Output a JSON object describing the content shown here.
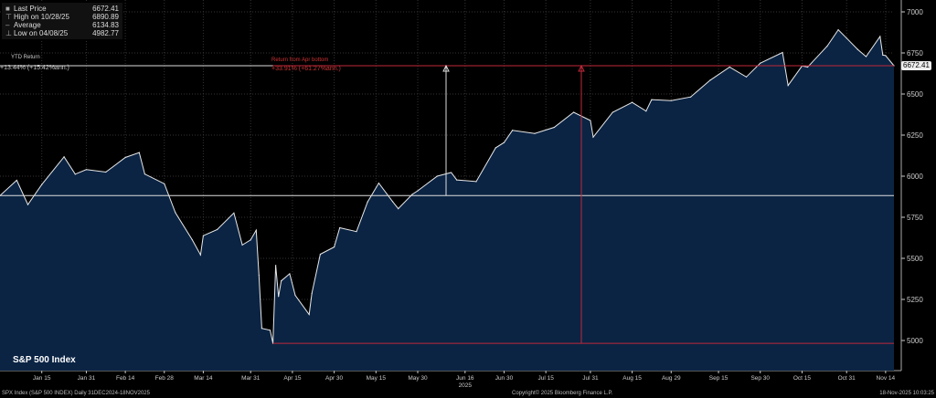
{
  "legend": {
    "items": [
      {
        "label": "Last Price",
        "value": "6672.41",
        "icon": "white-square-icon"
      },
      {
        "label": "High on 10/28/25",
        "value": "6890.89",
        "icon": "high-marker-icon"
      },
      {
        "label": "Average",
        "value": "6134.83",
        "icon": "average-line-icon"
      },
      {
        "label": "Low on 04/08/25",
        "value": "4982.77",
        "icon": "low-marker-icon"
      }
    ]
  },
  "annotations": {
    "ytd_label": "YTD Return",
    "ytd_value": "+13.44% (+15.42%ann.)",
    "bottom_label": "Return from Apr bottom",
    "bottom_value": "+33.91% (+61.27%ann.)"
  },
  "last_price_tag": "6672.41",
  "index_title": "S&P 500 Index",
  "footer": {
    "left": "SPX Index (S&P 500 INDEX) Daily 31DEC2024-18NOV2025",
    "center": "Copyright© 2025 Bloomberg Finance L.P.",
    "right": "18-Nov-2025 10:03:25"
  },
  "colors": {
    "background": "#000000",
    "area": "#0b2444",
    "line": "#e8e8e8",
    "annotation": "#c0283a"
  },
  "chart_data": {
    "type": "area",
    "title": "S&P 500 Index",
    "xlabel": "2025",
    "ylabel": "",
    "ylim": [
      4850,
      7050
    ],
    "y_ticks": [
      5000,
      5250,
      5500,
      5750,
      6000,
      6250,
      6500,
      6750,
      7000
    ],
    "x_tick_labels": [
      {
        "date": "2025-01-15",
        "label": "Jan 15"
      },
      {
        "date": "2025-01-31",
        "label": "Jan 31"
      },
      {
        "date": "2025-02-14",
        "label": "Feb 14"
      },
      {
        "date": "2025-02-28",
        "label": "Feb 28"
      },
      {
        "date": "2025-03-14",
        "label": "Mar 14"
      },
      {
        "date": "2025-03-31",
        "label": "Mar 31"
      },
      {
        "date": "2025-04-15",
        "label": "Apr 15"
      },
      {
        "date": "2025-04-30",
        "label": "Apr 30"
      },
      {
        "date": "2025-05-15",
        "label": "May 15"
      },
      {
        "date": "2025-05-30",
        "label": "May 30"
      },
      {
        "date": "2025-06-16",
        "label": "Jun 16"
      },
      {
        "date": "2025-06-30",
        "label": "Jun 30"
      },
      {
        "date": "2025-07-15",
        "label": "Jul 15"
      },
      {
        "date": "2025-07-31",
        "label": "Jul 31"
      },
      {
        "date": "2025-08-15",
        "label": "Aug 15"
      },
      {
        "date": "2025-08-29",
        "label": "Aug 29"
      },
      {
        "date": "2025-09-15",
        "label": "Sep 15"
      },
      {
        "date": "2025-09-30",
        "label": "Sep 30"
      },
      {
        "date": "2025-10-15",
        "label": "Oct 15"
      },
      {
        "date": "2025-10-31",
        "label": "Oct 31"
      },
      {
        "date": "2025-11-14",
        "label": "Nov 14"
      }
    ],
    "grid": true,
    "legend_position": "top-left",
    "reference_lines": {
      "start": 5881.63,
      "last": 6672.41,
      "low": 4982.77
    },
    "series": [
      {
        "name": "Last Price",
        "points": [
          [
            "2024-12-31",
            5881.63
          ],
          [
            "2025-01-06",
            5975
          ],
          [
            "2025-01-10",
            5827
          ],
          [
            "2025-01-15",
            5949
          ],
          [
            "2025-01-23",
            6118
          ],
          [
            "2025-01-27",
            6012
          ],
          [
            "2025-01-31",
            6040
          ],
          [
            "2025-02-07",
            6025
          ],
          [
            "2025-02-14",
            6114
          ],
          [
            "2025-02-19",
            6144
          ],
          [
            "2025-02-21",
            6013
          ],
          [
            "2025-02-28",
            5954
          ],
          [
            "2025-03-04",
            5778
          ],
          [
            "2025-03-10",
            5614
          ],
          [
            "2025-03-13",
            5521
          ],
          [
            "2025-03-14",
            5638
          ],
          [
            "2025-03-19",
            5675
          ],
          [
            "2025-03-25",
            5776
          ],
          [
            "2025-03-28",
            5581
          ],
          [
            "2025-03-31",
            5612
          ],
          [
            "2025-04-02",
            5671
          ],
          [
            "2025-04-03",
            5397
          ],
          [
            "2025-04-04",
            5074
          ],
          [
            "2025-04-07",
            5062
          ],
          [
            "2025-04-08",
            4982.77
          ],
          [
            "2025-04-09",
            5457
          ],
          [
            "2025-04-10",
            5268
          ],
          [
            "2025-04-11",
            5363
          ],
          [
            "2025-04-14",
            5406
          ],
          [
            "2025-04-16",
            5275
          ],
          [
            "2025-04-21",
            5158
          ],
          [
            "2025-04-22",
            5287
          ],
          [
            "2025-04-25",
            5525
          ],
          [
            "2025-04-30",
            5569
          ],
          [
            "2025-05-02",
            5686
          ],
          [
            "2025-05-08",
            5663
          ],
          [
            "2025-05-12",
            5844
          ],
          [
            "2025-05-16",
            5958
          ],
          [
            "2025-05-21",
            5845
          ],
          [
            "2025-05-23",
            5802
          ],
          [
            "2025-05-28",
            5889
          ],
          [
            "2025-05-30",
            5911
          ],
          [
            "2025-06-06",
            6000
          ],
          [
            "2025-06-11",
            6022
          ],
          [
            "2025-06-13",
            5977
          ],
          [
            "2025-06-20",
            5967
          ],
          [
            "2025-06-27",
            6173
          ],
          [
            "2025-06-30",
            6205
          ],
          [
            "2025-07-03",
            6279
          ],
          [
            "2025-07-11",
            6260
          ],
          [
            "2025-07-18",
            6297
          ],
          [
            "2025-07-25",
            6389
          ],
          [
            "2025-07-31",
            6339
          ],
          [
            "2025-08-01",
            6238
          ],
          [
            "2025-08-08",
            6389
          ],
          [
            "2025-08-15",
            6449
          ],
          [
            "2025-08-20",
            6396
          ],
          [
            "2025-08-22",
            6466
          ],
          [
            "2025-08-29",
            6460
          ],
          [
            "2025-09-05",
            6482
          ],
          [
            "2025-09-12",
            6584
          ],
          [
            "2025-09-19",
            6664
          ],
          [
            "2025-09-25",
            6604
          ],
          [
            "2025-09-30",
            6688
          ],
          [
            "2025-10-08",
            6753
          ],
          [
            "2025-10-10",
            6552
          ],
          [
            "2025-10-15",
            6671
          ],
          [
            "2025-10-17",
            6664
          ],
          [
            "2025-10-24",
            6791
          ],
          [
            "2025-10-28",
            6890.89
          ],
          [
            "2025-10-31",
            6840
          ],
          [
            "2025-11-04",
            6771
          ],
          [
            "2025-11-07",
            6728
          ],
          [
            "2025-11-12",
            6850
          ],
          [
            "2025-11-13",
            6737
          ],
          [
            "2025-11-14",
            6734
          ],
          [
            "2025-11-17",
            6672.41
          ]
        ]
      }
    ]
  }
}
